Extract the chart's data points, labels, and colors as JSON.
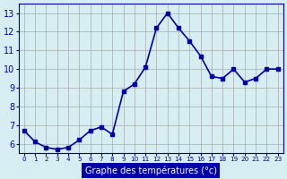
{
  "x": [
    0,
    1,
    2,
    3,
    4,
    5,
    6,
    7,
    8,
    9,
    10,
    11,
    12,
    13,
    14,
    15,
    16,
    17,
    18,
    19,
    20,
    21,
    22,
    23
  ],
  "y": [
    6.7,
    6.1,
    5.8,
    5.7,
    5.8,
    6.2,
    6.7,
    6.9,
    6.5,
    8.8,
    9.2,
    10.1,
    12.2,
    13.0,
    12.2,
    11.5,
    10.7,
    9.6,
    9.5,
    10.0,
    9.3,
    9.5,
    10.0,
    10.0
  ],
  "line_color": "#0000aa",
  "marker": "s",
  "marker_size": 3,
  "bg_color": "#d6eef2",
  "grid_color": "#aaaaaa",
  "xlabel": "Graphe des températures (°c)",
  "tick_color": "#0000aa",
  "ylim": [
    5.5,
    13.5
  ],
  "yticks": [
    6,
    7,
    8,
    9,
    10,
    11,
    12,
    13
  ],
  "xlim": [
    -0.5,
    23.5
  ],
  "xticks": [
    0,
    1,
    2,
    3,
    4,
    5,
    6,
    7,
    8,
    9,
    10,
    11,
    12,
    13,
    14,
    15,
    16,
    17,
    18,
    19,
    20,
    21,
    22,
    23
  ],
  "xtick_labels": [
    "0",
    "1",
    "2",
    "3",
    "4",
    "5",
    "6",
    "7",
    "8",
    "9",
    "10",
    "11",
    "12",
    "13",
    "14",
    "15",
    "16",
    "17",
    "18",
    "19",
    "20",
    "21",
    "22",
    "23"
  ],
  "line_width": 1.2,
  "spine_color": "#0000aa",
  "label_bg_color": "#0000aa",
  "label_text_color": "#ffffff"
}
